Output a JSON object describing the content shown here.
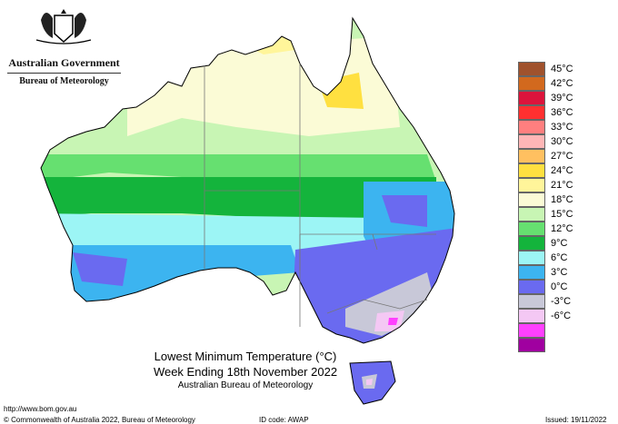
{
  "header": {
    "org_name": "Australian Government",
    "bureau": "Bureau of Meteorology"
  },
  "map": {
    "title": "Lowest Minimum Temperature (°C)",
    "subtitle": "Week Ending 18th November 2022",
    "source": "Australian Bureau of Meteorology",
    "region": "Australia"
  },
  "legend": {
    "items": [
      {
        "label": "45°C",
        "color": "#a0522d"
      },
      {
        "label": "42°C",
        "color": "#d2691e"
      },
      {
        "label": "39°C",
        "color": "#dc143c"
      },
      {
        "label": "36°C",
        "color": "#ff3030"
      },
      {
        "label": "33°C",
        "color": "#ff7f7f"
      },
      {
        "label": "30°C",
        "color": "#ffb6b6"
      },
      {
        "label": "27°C",
        "color": "#ffc060"
      },
      {
        "label": "24°C",
        "color": "#ffe040"
      },
      {
        "label": "21°C",
        "color": "#fff59a"
      },
      {
        "label": "18°C",
        "color": "#fbfbd6"
      },
      {
        "label": "15°C",
        "color": "#c8f5b4"
      },
      {
        "label": "12°C",
        "color": "#66e070"
      },
      {
        "label": "9°C",
        "color": "#14b43c"
      },
      {
        "label": "6°C",
        "color": "#9cf5f5"
      },
      {
        "label": "3°C",
        "color": "#3cb4f0"
      },
      {
        "label": "0°C",
        "color": "#6a6af0"
      },
      {
        "label": "-3°C",
        "color": "#c8c8d8"
      },
      {
        "label": "-6°C",
        "color": "#f4c8f4"
      },
      {
        "label": "",
        "color": "#ff40ff"
      },
      {
        "label": "",
        "color": "#a000a0"
      }
    ]
  },
  "footer": {
    "url": "http://www.bom.gov.au",
    "copyright": "© Commonwealth of Australia 2022, Bureau of Meteorology",
    "id_code": "ID code: AWAP",
    "issued": "Issued: 19/11/2022"
  },
  "colors": {
    "sea": "#ffffff",
    "land_outline": "#000000",
    "state_border": "#777777"
  }
}
